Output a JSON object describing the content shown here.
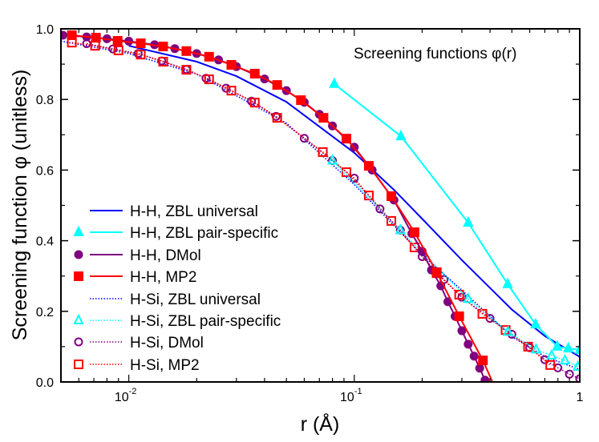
{
  "chart_data": {
    "type": "line",
    "title": "Screening functions φ(r)",
    "xlabel": "r (Å)",
    "ylabel": "Screening function φ (unitless)",
    "xscale": "log",
    "xlim": [
      0.005,
      1
    ],
    "ylim": [
      0,
      1
    ],
    "x_ticks": [
      {
        "value": 0.01,
        "label": "10",
        "exp": "-2"
      },
      {
        "value": 0.1,
        "label": "10",
        "exp": "-1"
      },
      {
        "value": 1,
        "label": "1",
        "exp": ""
      }
    ],
    "y_ticks": [
      {
        "value": 0,
        "label": "0.0"
      },
      {
        "value": 0.2,
        "label": "0.2"
      },
      {
        "value": 0.4,
        "label": "0.4"
      },
      {
        "value": 0.6,
        "label": "0.6"
      },
      {
        "value": 0.8,
        "label": "0.8"
      },
      {
        "value": 1.0,
        "label": "1.0"
      }
    ],
    "grid": false,
    "legend_position": "left-bottom",
    "series": [
      {
        "name": "H-H, ZBL universal",
        "color": "#0000ff",
        "dash": "solid",
        "marker": "none",
        "x": [
          0.01,
          0.02,
          0.03,
          0.05,
          0.1,
          0.15,
          0.2,
          0.3,
          0.5,
          0.7,
          1.0
        ],
        "y": [
          0.952,
          0.907,
          0.866,
          0.793,
          0.649,
          0.544,
          0.462,
          0.345,
          0.205,
          0.13,
          0.071
        ]
      },
      {
        "name": "H-H, ZBL pair-specific",
        "color": "#00ffff",
        "dash": "solid",
        "marker": "triangle-filled",
        "x": [
          0.0815,
          0.161,
          0.32,
          0.479,
          0.637,
          0.795,
          0.89,
          1.0
        ],
        "y": [
          0.844,
          0.696,
          0.451,
          0.277,
          0.163,
          0.1,
          0.095,
          0.091
        ]
      },
      {
        "name": "H-H, DMol",
        "color": "#800080",
        "dash": "solid",
        "marker": "circle-filled",
        "x": [
          0.0051,
          0.0065,
          0.008,
          0.01,
          0.013,
          0.016,
          0.02,
          0.025,
          0.03,
          0.04,
          0.05,
          0.06,
          0.07,
          0.08,
          0.1,
          0.12,
          0.15,
          0.18,
          0.2,
          0.22,
          0.242,
          0.26,
          0.28,
          0.3,
          0.32,
          0.34,
          0.36,
          0.38
        ],
        "y": [
          0.982,
          0.977,
          0.972,
          0.965,
          0.955,
          0.944,
          0.93,
          0.912,
          0.893,
          0.858,
          0.825,
          0.792,
          0.758,
          0.725,
          0.665,
          0.6,
          0.515,
          0.42,
          0.37,
          0.317,
          0.272,
          0.227,
          0.186,
          0.145,
          0.107,
          0.073,
          0.039,
          0.005
        ]
      },
      {
        "name": "H-H, MP2",
        "color": "#ff0000",
        "dash": "solid",
        "marker": "square-filled",
        "x": [
          0.00559,
          0.00715,
          0.00892,
          0.0113,
          0.0142,
          0.018,
          0.0227,
          0.0285,
          0.0362,
          0.0455,
          0.058,
          0.073,
          0.0923,
          0.116,
          0.146,
          0.185,
          0.232,
          0.292,
          0.372,
          0.41
        ],
        "y": [
          0.982,
          0.975,
          0.966,
          0.959,
          0.95,
          0.937,
          0.921,
          0.898,
          0.873,
          0.841,
          0.798,
          0.748,
          0.689,
          0.612,
          0.526,
          0.424,
          0.311,
          0.186,
          0.061,
          0.0
        ],
        "marker_count": 19
      },
      {
        "name": "H-Si, ZBL universal",
        "color": "#0000ff",
        "dash": "dotted",
        "marker": "none",
        "x": [
          0.005,
          0.01,
          0.02,
          0.05,
          0.1,
          0.2,
          0.3,
          0.5,
          0.7,
          1.0
        ],
        "y": [
          0.965,
          0.93,
          0.872,
          0.733,
          0.559,
          0.36,
          0.26,
          0.128,
          0.072,
          0.035
        ]
      },
      {
        "name": "H-Si, ZBL pair-specific",
        "color": "#00ffff",
        "dash": "dotted",
        "marker": "triangle-open",
        "x": [
          0.08,
          0.16,
          0.32,
          0.48,
          0.64,
          0.75,
          0.86,
          0.98
        ],
        "y": [
          0.627,
          0.43,
          0.235,
          0.142,
          0.092,
          0.075,
          0.061,
          0.043
        ]
      },
      {
        "name": "H-Si, DMol",
        "color": "#800080",
        "dash": "dotted",
        "marker": "circle-open",
        "x": [
          0.0065,
          0.0085,
          0.011,
          0.014,
          0.018,
          0.022,
          0.027,
          0.035,
          0.045,
          0.06,
          0.08,
          0.1,
          0.13,
          0.16,
          0.2,
          0.25,
          0.3,
          0.4,
          0.5,
          0.6,
          0.7,
          0.8,
          0.9,
          1.0
        ],
        "y": [
          0.958,
          0.943,
          0.93,
          0.909,
          0.885,
          0.86,
          0.832,
          0.795,
          0.752,
          0.69,
          0.627,
          0.577,
          0.49,
          0.43,
          0.355,
          0.29,
          0.24,
          0.18,
          0.135,
          0.097,
          0.063,
          0.04,
          0.022,
          0.009
        ]
      },
      {
        "name": "H-Si, MP2",
        "color": "#ff0000",
        "dash": "dotted",
        "marker": "square-open",
        "x": [
          0.00559,
          0.00709,
          0.009,
          0.0113,
          0.0142,
          0.018,
          0.0227,
          0.0285,
          0.0362,
          0.0455,
          0.0725,
          0.0923,
          0.116,
          0.146,
          0.185,
          0.232,
          0.292,
          0.37,
          0.469,
          0.59,
          0.74
        ],
        "y": [
          0.961,
          0.952,
          0.939,
          0.927,
          0.907,
          0.884,
          0.857,
          0.825,
          0.791,
          0.748,
          0.651,
          0.594,
          0.528,
          0.456,
          0.381,
          0.308,
          0.247,
          0.193,
          0.147,
          0.1,
          0.048
        ]
      }
    ]
  }
}
